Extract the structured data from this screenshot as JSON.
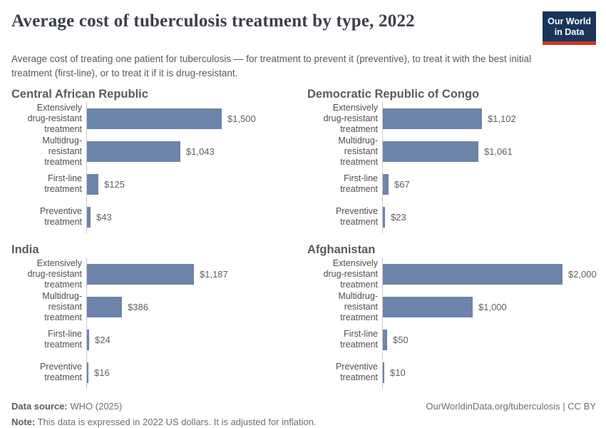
{
  "header": {
    "title": "Average cost of tuberculosis treatment by type, 2022",
    "subtitle": "Average cost of treating one patient for tuberculosis — for treatment to prevent it (preventive), to treat it with the best initial treatment (first-line), or to treat it if it is drug-resistant.",
    "logo": {
      "line1": "Our World",
      "line2": "in Data"
    }
  },
  "chart_data": [
    {
      "type": "bar",
      "orientation": "horizontal",
      "title": "Central African Republic",
      "categories": [
        "Extensively\ndrug-resistant\ntreatment",
        "Multidrug-resistant\ntreatment",
        "First-line treatment",
        "Preventive\ntreatment"
      ],
      "values": [
        1500,
        1043,
        125,
        43
      ],
      "value_labels": [
        "$1,500",
        "$1,043",
        "$125",
        "$43"
      ],
      "xlim": [
        0,
        2000
      ],
      "grid": false,
      "unit": "US$"
    },
    {
      "type": "bar",
      "orientation": "horizontal",
      "title": "Democratic Republic of Congo",
      "categories": [
        "Extensively\ndrug-resistant\ntreatment",
        "Multidrug-resistant\ntreatment",
        "First-line treatment",
        "Preventive\ntreatment"
      ],
      "values": [
        1102,
        1061,
        67,
        23
      ],
      "value_labels": [
        "$1,102",
        "$1,061",
        "$67",
        "$23"
      ],
      "xlim": [
        0,
        2000
      ],
      "grid": false,
      "unit": "US$"
    },
    {
      "type": "bar",
      "orientation": "horizontal",
      "title": "India",
      "categories": [
        "Extensively\ndrug-resistant\ntreatment",
        "Multidrug-resistant\ntreatment",
        "First-line treatment",
        "Preventive\ntreatment"
      ],
      "values": [
        1187,
        386,
        24,
        16
      ],
      "value_labels": [
        "$1,187",
        "$386",
        "$24",
        "$16"
      ],
      "xlim": [
        0,
        2000
      ],
      "grid": false,
      "unit": "US$"
    },
    {
      "type": "bar",
      "orientation": "horizontal",
      "title": "Afghanistan",
      "categories": [
        "Extensively\ndrug-resistant\ntreatment",
        "Multidrug-resistant\ntreatment",
        "First-line treatment",
        "Preventive\ntreatment"
      ],
      "values": [
        2000,
        1000,
        50,
        10
      ],
      "value_labels": [
        "$2,000",
        "$1,000",
        "$50",
        "$10"
      ],
      "xlim": [
        0,
        2000
      ],
      "grid": false,
      "unit": "US$"
    }
  ],
  "footer": {
    "source_label": "Data source:",
    "source_value": "WHO (2025)",
    "note_label": "Note:",
    "note_value": "This data is expressed in 2022 US dollars. It is adjusted for inflation.",
    "link": "OurWorldinData.org/tuberculosis | CC BY"
  },
  "colors": {
    "bar": "#6d84ab",
    "logo_bg": "#18355a",
    "logo_stripe": "#d0342c",
    "axis": "#c9c9c9"
  }
}
